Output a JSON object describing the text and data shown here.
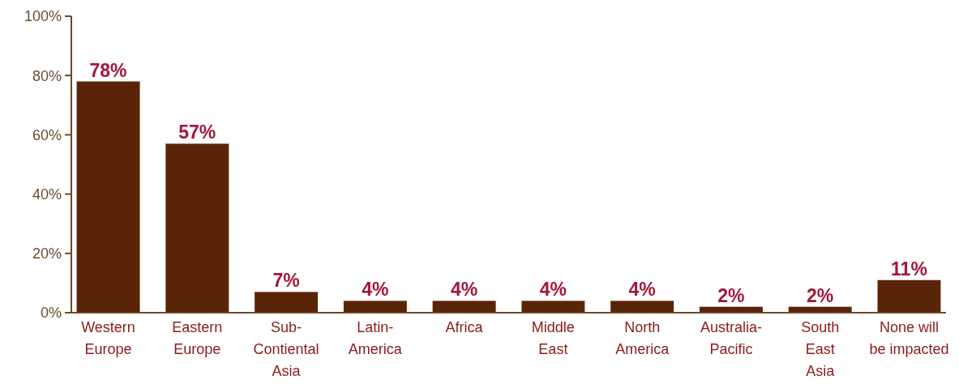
{
  "chart_data": {
    "type": "bar",
    "categories": [
      "Western\nEurope",
      "Eastern\nEurope",
      "Sub-\nContiental\nAsia",
      "Latin-\nAmerica",
      "Africa",
      "Middle\nEast",
      "North\nAmerica",
      "Australia-\nPacific",
      "South\nEast\nAsia",
      "None will\nbe impacted"
    ],
    "values": [
      78,
      57,
      7,
      4,
      4,
      4,
      4,
      2,
      2,
      11
    ],
    "value_labels": [
      "78%",
      "57%",
      "7%",
      "4%",
      "4%",
      "4%",
      "4%",
      "2%",
      "2%",
      "11%"
    ],
    "color": "#5a2408",
    "ylim": [
      0,
      100
    ],
    "yticks": [
      {
        "value": 0,
        "label": "0%"
      },
      {
        "value": 20,
        "label": "20%"
      },
      {
        "value": 40,
        "label": "40%"
      },
      {
        "value": 60,
        "label": "60%"
      },
      {
        "value": 80,
        "label": "80%"
      },
      {
        "value": 100,
        "label": "100%"
      }
    ],
    "grid": false
  }
}
